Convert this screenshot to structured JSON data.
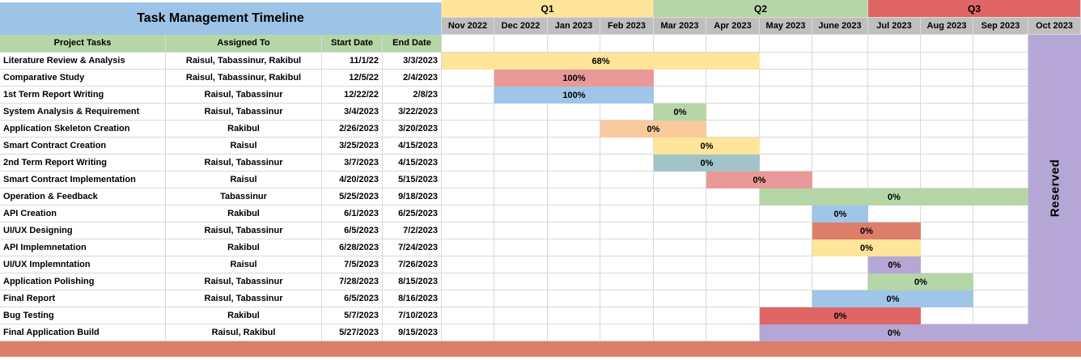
{
  "title": "Task Management Timeline",
  "reserved_label": "Reserved",
  "table_headers": [
    "Project Tasks",
    "Assigned To",
    "Start Date",
    "End Date"
  ],
  "colors": {
    "title_blue": "#9DC3E6",
    "header_green": "#B5D6A7",
    "month_gray": "#BFBFBF",
    "grid": "#D9D9D9",
    "footer": "#DD7E6B",
    "yellow": "#FFE599",
    "pink": "#EA9999",
    "blue": "#9FC5E8",
    "green": "#B5D6A7",
    "orange": "#F9CB9C",
    "teal": "#A2C4C9",
    "salmon": "#DD7E6B",
    "red": "#E06666",
    "purple": "#B4A7D6"
  },
  "chart_data": {
    "type": "bar",
    "subtype": "gantt-timeline",
    "title": "Task Management Timeline",
    "legend_position": "none",
    "grid": true,
    "months": [
      "Nov 2022",
      "Dec 2022",
      "Jan 2023",
      "Feb 2023",
      "Mar 2023",
      "Apr 2023",
      "May 2023",
      "June 2023",
      "Jul 2023",
      "Aug 2023",
      "Sep 2023",
      "Oct 2023"
    ],
    "quarters": [
      {
        "label": "Q1",
        "from": 0,
        "to": 4,
        "color": "yellow"
      },
      {
        "label": "Q2",
        "from": 4,
        "to": 8,
        "color": "green"
      },
      {
        "label": "Q3",
        "from": 8,
        "to": 12,
        "color": "red"
      }
    ],
    "tasks": [
      {
        "task": "Literature Review & Analysis",
        "assigned": "Raisul, Tabassinur, Rakibul",
        "start_date": "11/1/22",
        "end_date": "3/3/2023",
        "bar": {
          "from": 0,
          "to": 6,
          "color": "yellow",
          "label": "68%"
        }
      },
      {
        "task": "Comparative Study",
        "assigned": "Raisul, Tabassinur, Rakibul",
        "start_date": "12/5/22",
        "end_date": "2/4/2023",
        "bar": {
          "from": 1,
          "to": 4,
          "color": "pink",
          "label": "100%"
        }
      },
      {
        "task": "1st Term Report Writing",
        "assigned": "Raisul, Tabassinur",
        "start_date": "12/22/22",
        "end_date": "2/8/23",
        "bar": {
          "from": 1,
          "to": 4,
          "color": "blue",
          "label": "100%"
        }
      },
      {
        "task": "System Analysis & Requirement",
        "assigned": "Raisul, Tabassinur",
        "start_date": "3/4/2023",
        "end_date": "3/22/2023",
        "bar": {
          "from": 4,
          "to": 5,
          "color": "green",
          "label": "0%"
        }
      },
      {
        "task": "Application Skeleton Creation",
        "assigned": "Rakibul",
        "start_date": "2/26/2023",
        "end_date": "3/20/2023",
        "bar": {
          "from": 3,
          "to": 5,
          "color": "orange",
          "label": "0%"
        }
      },
      {
        "task": "Smart Contract Creation",
        "assigned": "Raisul",
        "start_date": "3/25/2023",
        "end_date": "4/15/2023",
        "bar": {
          "from": 4,
          "to": 6,
          "color": "yellow",
          "label": "0%"
        }
      },
      {
        "task": "2nd Term Report Writing",
        "assigned": "Raisul, Tabassinur",
        "start_date": "3/7/2023",
        "end_date": "4/15/2023",
        "bar": {
          "from": 4,
          "to": 6,
          "color": "teal",
          "label": "0%"
        }
      },
      {
        "task": "Smart Contract Implementation",
        "assigned": "Raisul",
        "start_date": "4/20/2023",
        "end_date": "5/15/2023",
        "bar": {
          "from": 5,
          "to": 7,
          "color": "pink",
          "label": "0%"
        }
      },
      {
        "task": "Operation & Feedback",
        "assigned": "Tabassinur",
        "start_date": "5/25/2023",
        "end_date": "9/18/2023",
        "bar": {
          "from": 6,
          "to": 11,
          "color": "green",
          "label": "0%"
        }
      },
      {
        "task": "API Creation",
        "assigned": "Rakibul",
        "start_date": "6/1/2023",
        "end_date": "6/25/2023",
        "bar": {
          "from": 7,
          "to": 8,
          "color": "blue",
          "label": "0%"
        }
      },
      {
        "task": "UI/UX Designing",
        "assigned": "Raisul, Tabassinur",
        "start_date": "6/5/2023",
        "end_date": "7/2/2023",
        "bar": {
          "from": 7,
          "to": 9,
          "color": "salmon",
          "label": "0%"
        }
      },
      {
        "task": "API Implemnetation",
        "assigned": "Rakibul",
        "start_date": "6/28/2023",
        "end_date": "7/24/2023",
        "bar": {
          "from": 7,
          "to": 9,
          "color": "yellow",
          "label": "0%"
        }
      },
      {
        "task": "UI/UX Implemntation",
        "assigned": "Raisul",
        "start_date": "7/5/2023",
        "end_date": "7/26/2023",
        "bar": {
          "from": 8,
          "to": 9,
          "color": "purple",
          "label": "0%"
        }
      },
      {
        "task": "Application Polishing",
        "assigned": "Raisul, Tabassinur",
        "start_date": "7/28/2023",
        "end_date": "8/15/2023",
        "bar": {
          "from": 8,
          "to": 10,
          "color": "green",
          "label": "0%"
        }
      },
      {
        "task": "Final Report",
        "assigned": "Raisul, Tabassinur",
        "start_date": "6/5/2023",
        "end_date": "8/16/2023",
        "bar": {
          "from": 7,
          "to": 10,
          "color": "blue",
          "label": "0%"
        }
      },
      {
        "task": "Bug Testing",
        "assigned": "Rakibul",
        "start_date": "5/7/2023",
        "end_date": "7/10/2023",
        "bar": {
          "from": 6,
          "to": 9,
          "color": "red",
          "label": "0%"
        }
      },
      {
        "task": "Final Application Build",
        "assigned": "Raisul, Rakibul",
        "start_date": "5/27/2023",
        "end_date": "9/15/2023",
        "bar": {
          "from": 6,
          "to": 11,
          "color": "purple",
          "label": "0%"
        }
      }
    ]
  }
}
